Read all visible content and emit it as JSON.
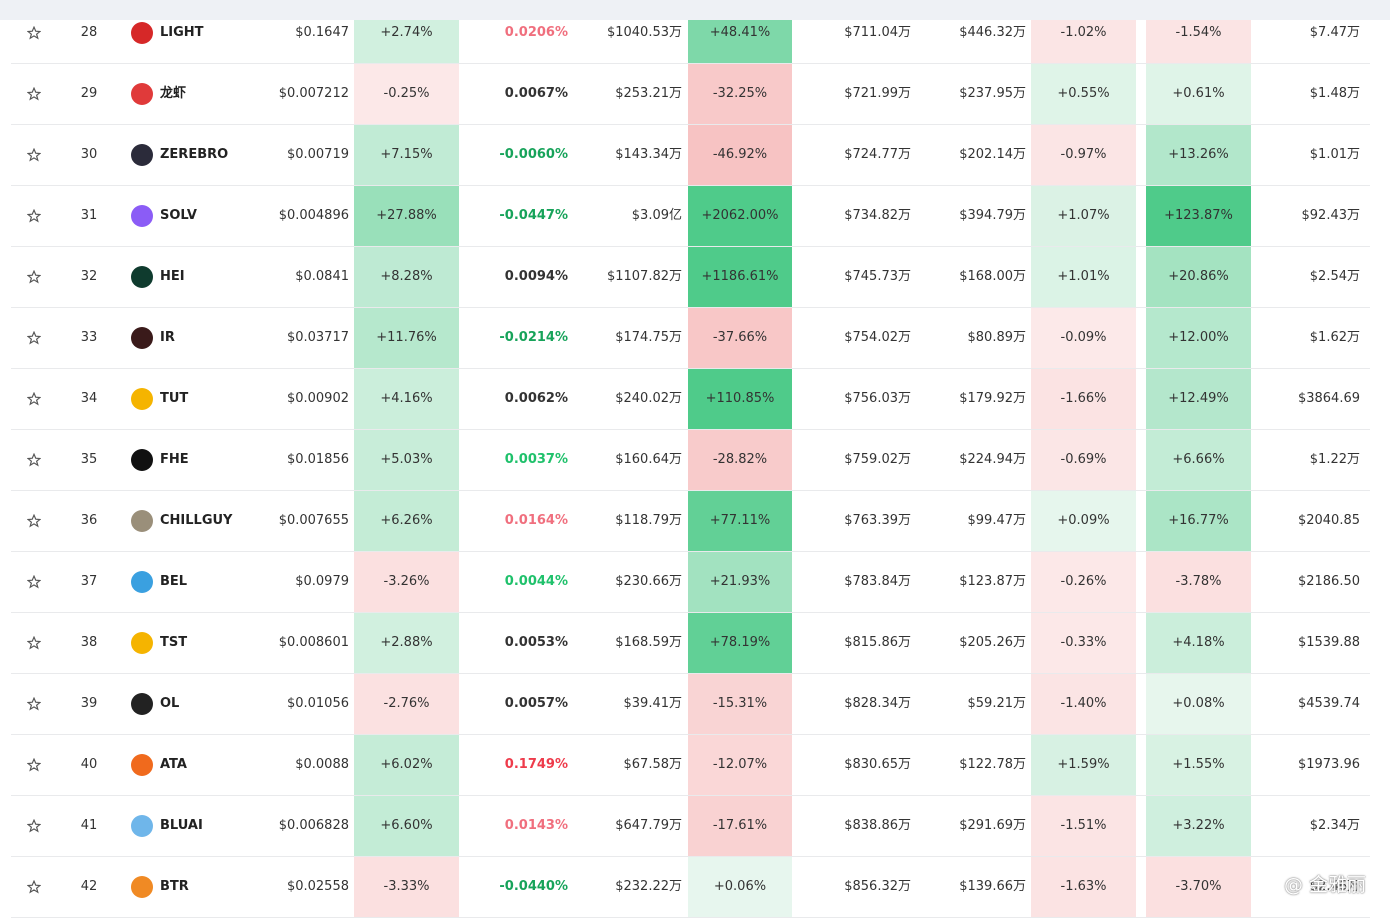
{
  "rows": [
    {
      "rank": "28",
      "name": "LIGHT",
      "icon_color": "#d62828",
      "price": "$0.1647",
      "change": "+2.74%",
      "funding": "0.0206%",
      "funding_color": "#f06f7e",
      "volume": "$1040.53万",
      "change_2": "+48.41%",
      "col_a": "$711.04万",
      "col_b": "$446.32万",
      "pct_a": "-1.02%",
      "pct_b": "-1.54%",
      "value": "$7.47万"
    },
    {
      "rank": "29",
      "name": "龙虾",
      "icon_color": "#e03a3a",
      "price": "$0.007212",
      "change": "-0.25%",
      "funding": "0.0067%",
      "funding_color": "#333333",
      "volume": "$253.21万",
      "change_2": "-32.25%",
      "col_a": "$721.99万",
      "col_b": "$237.95万",
      "pct_a": "+0.55%",
      "pct_b": "+0.61%",
      "value": "$1.48万"
    },
    {
      "rank": "30",
      "name": "ZEREBRO",
      "icon_color": "#2b2b3a",
      "price": "$0.00719",
      "change": "+7.15%",
      "funding": "-0.0060%",
      "funding_color": "#17a35a",
      "volume": "$143.34万",
      "change_2": "-46.92%",
      "col_a": "$724.77万",
      "col_b": "$202.14万",
      "pct_a": "-0.97%",
      "pct_b": "+13.26%",
      "value": "$1.01万"
    },
    {
      "rank": "31",
      "name": "SOLV",
      "icon_color": "#8b5cf6",
      "price": "$0.004896",
      "change": "+27.88%",
      "funding": "-0.0447%",
      "funding_color": "#17a35a",
      "volume": "$3.09亿",
      "change_2": "+2062.00%",
      "col_a": "$734.82万",
      "col_b": "$394.79万",
      "pct_a": "+1.07%",
      "pct_b": "+123.87%",
      "value": "$92.43万"
    },
    {
      "rank": "32",
      "name": "HEI",
      "icon_color": "#0f3b2e",
      "price": "$0.0841",
      "change": "+8.28%",
      "funding": "0.0094%",
      "funding_color": "#333333",
      "volume": "$1107.82万",
      "change_2": "+1186.61%",
      "col_a": "$745.73万",
      "col_b": "$168.00万",
      "pct_a": "+1.01%",
      "pct_b": "+20.86%",
      "value": "$2.54万"
    },
    {
      "rank": "33",
      "name": "IR",
      "icon_color": "#3a1a1a",
      "price": "$0.03717",
      "change": "+11.76%",
      "funding": "-0.0214%",
      "funding_color": "#17a35a",
      "volume": "$174.75万",
      "change_2": "-37.66%",
      "col_a": "$754.02万",
      "col_b": "$80.89万",
      "pct_a": "-0.09%",
      "pct_b": "+12.00%",
      "value": "$1.62万"
    },
    {
      "rank": "34",
      "name": "TUT",
      "icon_color": "#f5b400",
      "price": "$0.00902",
      "change": "+4.16%",
      "funding": "0.0062%",
      "funding_color": "#333333",
      "volume": "$240.02万",
      "change_2": "+110.85%",
      "col_a": "$756.03万",
      "col_b": "$179.92万",
      "pct_a": "-1.66%",
      "pct_b": "+12.49%",
      "value": "$3864.69"
    },
    {
      "rank": "35",
      "name": "FHE",
      "icon_color": "#111111",
      "price": "$0.01856",
      "change": "+5.03%",
      "funding": "0.0037%",
      "funding_color": "#1fc16b",
      "volume": "$160.64万",
      "change_2": "-28.82%",
      "col_a": "$759.02万",
      "col_b": "$224.94万",
      "pct_a": "-0.69%",
      "pct_b": "+6.66%",
      "value": "$1.22万"
    },
    {
      "rank": "36",
      "name": "CHILLGUY",
      "icon_color": "#9a8f7a",
      "price": "$0.007655",
      "change": "+6.26%",
      "funding": "0.0164%",
      "funding_color": "#f06f7e",
      "volume": "$118.79万",
      "change_2": "+77.11%",
      "col_a": "$763.39万",
      "col_b": "$99.47万",
      "pct_a": "+0.09%",
      "pct_b": "+16.77%",
      "value": "$2040.85"
    },
    {
      "rank": "37",
      "name": "BEL",
      "icon_color": "#3aa0e0",
      "price": "$0.0979",
      "change": "-3.26%",
      "funding": "0.0044%",
      "funding_color": "#1fc16b",
      "volume": "$230.66万",
      "change_2": "+21.93%",
      "col_a": "$783.84万",
      "col_b": "$123.87万",
      "pct_a": "-0.26%",
      "pct_b": "-3.78%",
      "value": "$2186.50"
    },
    {
      "rank": "38",
      "name": "TST",
      "icon_color": "#f5b400",
      "price": "$0.008601",
      "change": "+2.88%",
      "funding": "0.0053%",
      "funding_color": "#333333",
      "volume": "$168.59万",
      "change_2": "+78.19%",
      "col_a": "$815.86万",
      "col_b": "$205.26万",
      "pct_a": "-0.33%",
      "pct_b": "+4.18%",
      "value": "$1539.88"
    },
    {
      "rank": "39",
      "name": "OL",
      "icon_color": "#222222",
      "price": "$0.01056",
      "change": "-2.76%",
      "funding": "0.0057%",
      "funding_color": "#333333",
      "volume": "$39.41万",
      "change_2": "-15.31%",
      "col_a": "$828.34万",
      "col_b": "$59.21万",
      "pct_a": "-1.40%",
      "pct_b": "+0.08%",
      "value": "$4539.74"
    },
    {
      "rank": "40",
      "name": "ATA",
      "icon_color": "#f06a1d",
      "price": "$0.0088",
      "change": "+6.02%",
      "funding": "0.1749%",
      "funding_color": "#ee3b4b",
      "volume": "$67.58万",
      "change_2": "-12.07%",
      "col_a": "$830.65万",
      "col_b": "$122.78万",
      "pct_a": "+1.59%",
      "pct_b": "+1.55%",
      "value": "$1973.96"
    },
    {
      "rank": "41",
      "name": "BLUAI",
      "icon_color": "#6fb6ea",
      "price": "$0.006828",
      "change": "+6.60%",
      "funding": "0.0143%",
      "funding_color": "#f06f7e",
      "volume": "$647.79万",
      "change_2": "-17.61%",
      "col_a": "$838.86万",
      "col_b": "$291.69万",
      "pct_a": "-1.51%",
      "pct_b": "+3.22%",
      "value": "$2.34万"
    },
    {
      "rank": "42",
      "name": "BTR",
      "icon_color": "#f08a24",
      "price": "$0.02558",
      "change": "-3.33%",
      "funding": "-0.0440%",
      "funding_color": "#17a35a",
      "volume": "$232.22万",
      "change_2": "+0.06%",
      "col_a": "$856.32万",
      "col_b": "$139.66万",
      "pct_a": "-1.63%",
      "pct_b": "-3.70%",
      "value": "$2.46万"
    }
  ],
  "watermark": "@ 金雅丽"
}
